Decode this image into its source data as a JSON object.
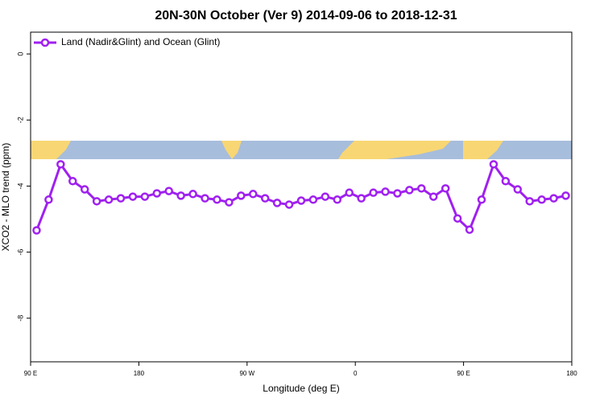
{
  "chart_data": {
    "type": "line",
    "title": "20N-30N October (Ver 9)   2014-09-06 to 2018-12-31",
    "xlabel": "Longitude (deg E)",
    "ylabel": "XCO2 - MLO trend (ppm)",
    "legend": "topleft",
    "x": [
      95,
      105,
      115,
      125,
      135,
      145,
      155,
      165,
      175,
      185,
      195,
      205,
      215,
      225,
      235,
      245,
      255,
      265,
      275,
      285,
      295,
      305,
      315,
      325,
      335,
      345,
      355,
      365,
      375,
      385,
      395,
      405,
      415,
      425,
      435,
      445,
      455,
      465,
      475,
      485,
      495,
      505,
      515,
      525,
      535
    ],
    "series": [
      {
        "name": "Land (Nadir&Glint) and Ocean (Glint)",
        "color": "#a020f0",
        "values": [
          -5.34,
          -4.41,
          -3.34,
          -3.85,
          -4.1,
          -4.46,
          -4.41,
          -4.37,
          -4.32,
          -4.32,
          -4.22,
          -4.15,
          -4.29,
          -4.24,
          -4.37,
          -4.41,
          -4.49,
          -4.29,
          -4.24,
          -4.37,
          -4.51,
          -4.56,
          -4.44,
          -4.41,
          -4.32,
          -4.41,
          -4.2,
          -4.37,
          -4.2,
          -4.17,
          -4.22,
          -4.12,
          -4.07,
          -4.32,
          -4.07,
          -4.98,
          -5.32,
          -4.41,
          -3.34,
          -3.85,
          -4.1,
          -4.46,
          -4.41,
          -4.37,
          -4.29
        ]
      }
    ],
    "xlim": [
      90,
      540
    ],
    "xticks": [
      {
        "value": 90,
        "label": "90 E"
      },
      {
        "value": 180,
        "label": "180"
      },
      {
        "value": 270,
        "label": "90 W"
      },
      {
        "value": 360,
        "label": "0"
      },
      {
        "value": 450,
        "label": "90 E"
      },
      {
        "value": 540,
        "label": "180"
      }
    ],
    "ylim": [
      -9.32,
      0.66
    ],
    "yticks": [
      0,
      -2,
      -4,
      -6,
      -8
    ]
  }
}
